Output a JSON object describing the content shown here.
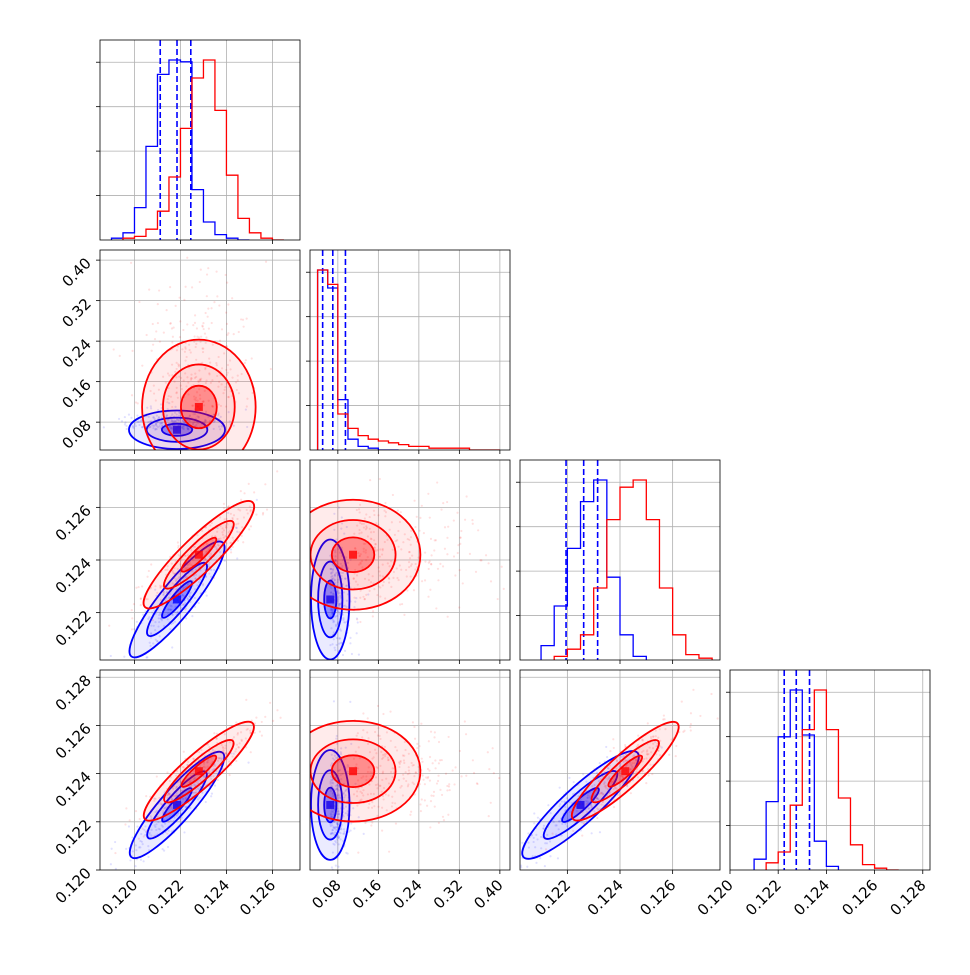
{
  "colors": {
    "series_a": "#0000ff",
    "series_b": "#ff0000",
    "grid": "#b0b0b0",
    "frame": "#000000"
  },
  "chart_data": {
    "type": "corner",
    "grid": true,
    "n_params": 4,
    "series": [
      {
        "color": "#0000ff",
        "quantiles": [
          [
            0.12112,
            0.12185,
            0.12245
          ],
          [
            0.05,
            0.07,
            0.095
          ],
          [
            0.12195,
            0.12262,
            0.12315
          ],
          [
            0.12225,
            0.12275,
            0.1233
          ]
        ],
        "histograms": [
          {
            "edges": [
              0.119,
              0.1195,
              0.12,
              0.1205,
              0.121,
              0.1215,
              0.122,
              0.1225,
              0.123,
              0.1235,
              0.124,
              0.1245,
              0.125
            ],
            "counts": [
              1,
              4,
              18,
              52,
              92,
              100,
              99,
              28,
              10,
              3,
              1,
              0
            ]
          },
          {
            "edges": [
              0.04,
              0.06,
              0.08,
              0.1,
              0.12,
              0.14,
              0.16,
              0.18,
              0.2
            ],
            "counts": [
              100,
              90,
              28,
              6,
              2,
              1,
              0,
              0
            ]
          },
          {
            "edges": [
              0.121,
              0.1215,
              0.122,
              0.1225,
              0.123,
              0.1235,
              0.124,
              0.1245,
              0.125
            ],
            "counts": [
              8,
              30,
              62,
              88,
              100,
              46,
              14,
              2
            ]
          },
          {
            "edges": [
              0.121,
              0.1215,
              0.122,
              0.1225,
              0.123,
              0.1235,
              0.124,
              0.1245
            ],
            "counts": [
              6,
              38,
              74,
              100,
              75,
              16,
              2
            ]
          }
        ],
        "centers": [
          0.12185,
          0.065,
          0.1225,
          0.1227
        ],
        "spread": [
          0.0011,
          0.02,
          0.0012,
          0.0012
        ]
      },
      {
        "color": "#ff0000",
        "quantiles": [],
        "histograms": [
          {
            "edges": [
              0.1195,
              0.12,
              0.1205,
              0.121,
              0.1215,
              0.122,
              0.1225,
              0.123,
              0.1235,
              0.124,
              0.1245,
              0.125,
              0.1255,
              0.126,
              0.1265
            ],
            "counts": [
              1,
              2,
              6,
              16,
              35,
              62,
              90,
              100,
              72,
              36,
              12,
              4,
              1,
              0
            ]
          },
          {
            "edges": [
              0.04,
              0.06,
              0.08,
              0.1,
              0.12,
              0.14,
              0.16,
              0.18,
              0.2,
              0.22,
              0.24,
              0.26,
              0.28,
              0.3,
              0.32,
              0.34,
              0.36,
              0.38,
              0.4
            ],
            "counts": [
              100,
              92,
              20,
              12,
              8,
              6,
              5,
              4,
              3,
              2,
              2,
              1,
              1,
              1,
              1,
              0,
              0,
              0
            ]
          },
          {
            "edges": [
              0.1215,
              0.122,
              0.1225,
              0.123,
              0.1235,
              0.124,
              0.1245,
              0.125,
              0.1255,
              0.126,
              0.1265,
              0.127,
              0.1275
            ],
            "counts": [
              2,
              6,
              14,
              40,
              78,
              96,
              100,
              78,
              40,
              14,
              3,
              1
            ]
          },
          {
            "edges": [
              0.1215,
              0.122,
              0.1225,
              0.123,
              0.1235,
              0.124,
              0.1245,
              0.125,
              0.1255,
              0.126,
              0.1265,
              0.127
            ],
            "counts": [
              4,
              10,
              36,
              78,
              100,
              78,
              40,
              14,
              3,
              1,
              0
            ]
          }
        ],
        "centers": [
          0.1228,
          0.11,
          0.1242,
          0.1241
        ],
        "spread": [
          0.0013,
          0.07,
          0.0011,
          0.0011
        ]
      }
    ],
    "ranges": [
      [
        0.1185,
        0.1272
      ],
      [
        0.025,
        0.42
      ],
      [
        0.1202,
        0.1278
      ],
      [
        0.12,
        0.1283
      ]
    ],
    "ticks": [
      [
        0.12,
        0.122,
        0.124,
        0.126
      ],
      [
        0.08,
        0.16,
        0.24,
        0.32,
        0.4
      ],
      [
        0.122,
        0.124,
        0.126
      ],
      [
        0.12,
        0.122,
        0.124,
        0.126,
        0.128
      ]
    ],
    "tick_labels": [
      [
        "0.120",
        "0.122",
        "0.124",
        "0.126"
      ],
      [
        "0.08",
        "0.16",
        "0.24",
        "0.32",
        "0.40"
      ],
      [
        "0.122",
        "0.124",
        "0.126"
      ],
      [
        "0.120",
        "0.122",
        "0.124",
        "0.126",
        "0.128"
      ]
    ],
    "y_tick_labels_row": [
      [],
      [
        "0.08",
        "0.16",
        "0.24",
        "0.32",
        "0.40"
      ],
      [
        "0.122",
        "0.124",
        "0.126"
      ],
      [
        "0.120",
        "0.122",
        "0.124",
        "0.126",
        "0.128"
      ]
    ],
    "y_ticks_row": [
      [],
      [
        0.08,
        0.16,
        0.24,
        0.32,
        0.4
      ],
      [
        0.122,
        0.124,
        0.126
      ],
      [
        0.12,
        0.122,
        0.124,
        0.126,
        0.128
      ]
    ]
  }
}
